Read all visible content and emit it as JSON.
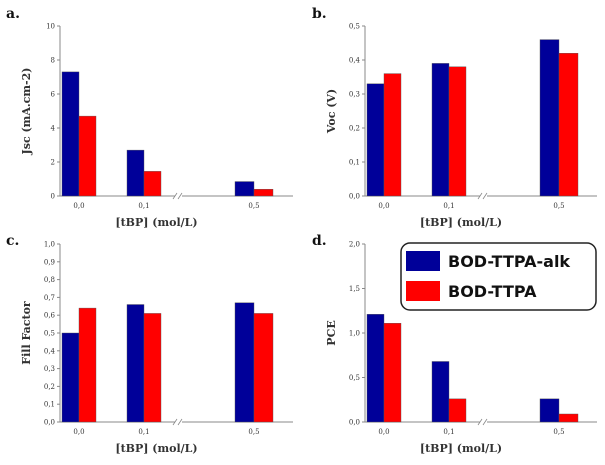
{
  "legend": [
    "BOD-TTPA-alk",
    "BOD-TTPA"
  ],
  "colors": {
    "BOD-TTPA-alk": "#000099",
    "BOD-TTPA": "#ff0000"
  },
  "chart_data": [
    {
      "type": "bar",
      "panel": "a.",
      "categories": [
        "0,0",
        "0,1",
        "0,5"
      ],
      "xlabel": "[tBP] (mol/L)",
      "ylabel": "Jsc (mA.cm-2)",
      "ylim": [
        0,
        10
      ],
      "yticks": [
        "0",
        "2",
        "4",
        "6",
        "8",
        "10"
      ],
      "series": [
        {
          "name": "BOD-TTPA-alk",
          "values": [
            7.3,
            2.7,
            0.85
          ]
        },
        {
          "name": "BOD-TTPA",
          "values": [
            4.7,
            1.45,
            0.4
          ]
        }
      ]
    },
    {
      "type": "bar",
      "panel": "b.",
      "categories": [
        "0,0",
        "0,1",
        "0,5"
      ],
      "xlabel": "[tBP] (mol/L)",
      "ylabel": "Voc (V)",
      "ylim": [
        0,
        0.5
      ],
      "yticks": [
        "0,0",
        "0,1",
        "0,2",
        "0,3",
        "0,4",
        "0,5"
      ],
      "series": [
        {
          "name": "BOD-TTPA-alk",
          "values": [
            0.33,
            0.39,
            0.46
          ]
        },
        {
          "name": "BOD-TTPA",
          "values": [
            0.36,
            0.38,
            0.42
          ]
        }
      ]
    },
    {
      "type": "bar",
      "panel": "c.",
      "categories": [
        "0,0",
        "0,1",
        "0,5"
      ],
      "xlabel": "[tBP] (mol/L)",
      "ylabel": "Fill Factor",
      "ylim": [
        0,
        1.0
      ],
      "yticks": [
        "0,0",
        "0,1",
        "0,2",
        "0,3",
        "0,4",
        "0,5",
        "0,6",
        "0,7",
        "0,8",
        "0,9",
        "1,0"
      ],
      "series": [
        {
          "name": "BOD-TTPA-alk",
          "values": [
            0.5,
            0.66,
            0.67
          ]
        },
        {
          "name": "BOD-TTPA",
          "values": [
            0.64,
            0.61,
            0.61
          ]
        }
      ]
    },
    {
      "type": "bar",
      "panel": "d.",
      "categories": [
        "0,0",
        "0,1",
        "0,5"
      ],
      "xlabel": "[tBP] (mol/L)",
      "ylabel": "PCE",
      "ylim": [
        0,
        2.0
      ],
      "yticks": [
        "0,0",
        "0,5",
        "1,0",
        "1,5",
        "2,0"
      ],
      "series": [
        {
          "name": "BOD-TTPA-alk",
          "values": [
            1.21,
            0.68,
            0.26
          ]
        },
        {
          "name": "BOD-TTPA",
          "values": [
            1.11,
            0.26,
            0.09
          ]
        }
      ]
    }
  ]
}
